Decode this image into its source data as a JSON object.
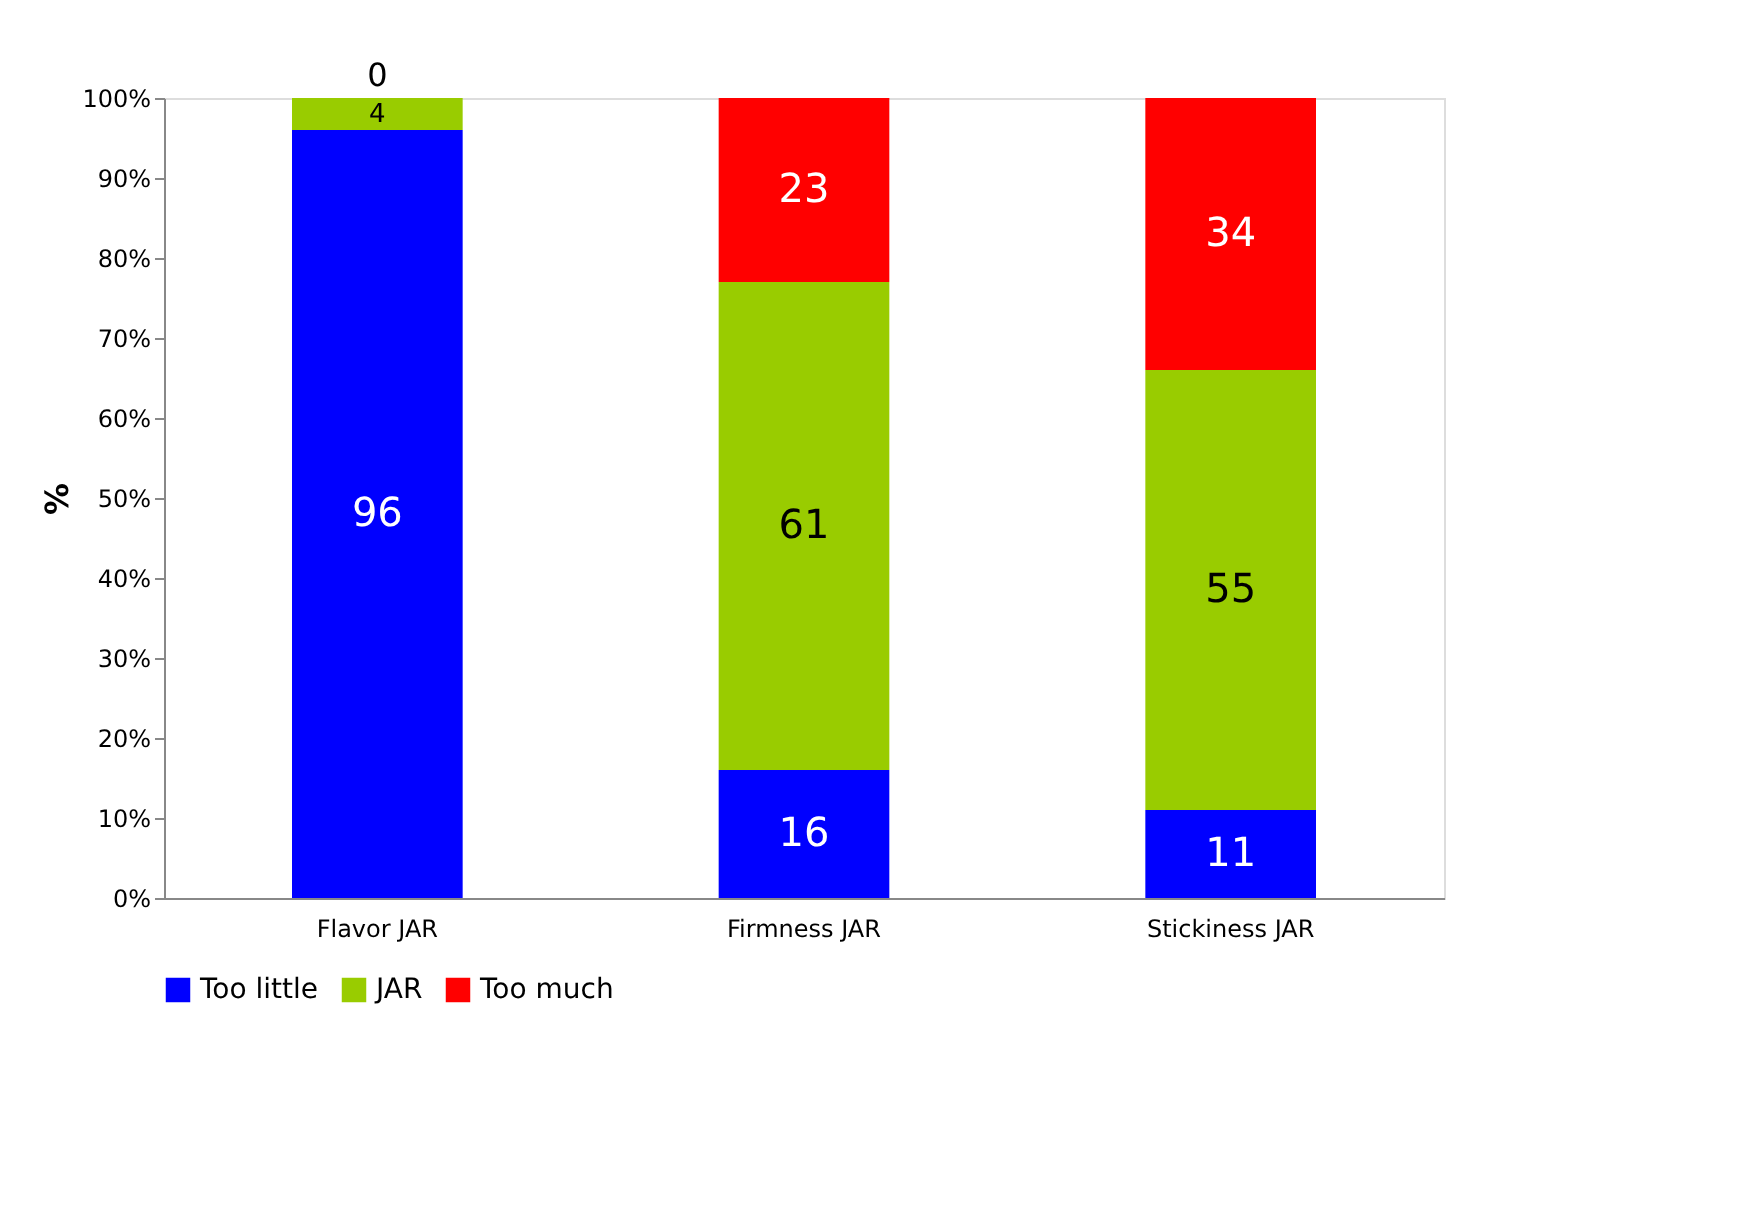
{
  "chart_data": {
    "type": "bar",
    "stacked": true,
    "ylabel": "%",
    "categories": [
      "Flavor JAR",
      "Firmness JAR",
      "Stickiness JAR"
    ],
    "series": [
      {
        "name": "Too little",
        "color": "#0000ff",
        "values": [
          96,
          16,
          11
        ]
      },
      {
        "name": "JAR",
        "color": "#99cc00",
        "values": [
          4,
          61,
          55
        ]
      },
      {
        "name": "Too much",
        "color": "#ff0000",
        "values": [
          0,
          23,
          34
        ]
      }
    ],
    "ylim": [
      0,
      100
    ],
    "yticks": [
      {
        "value": 0,
        "label": "0%"
      },
      {
        "value": 10,
        "label": "10%"
      },
      {
        "value": 20,
        "label": "20%"
      },
      {
        "value": 30,
        "label": "30%"
      },
      {
        "value": 40,
        "label": "40%"
      },
      {
        "value": 50,
        "label": "50%"
      },
      {
        "value": 60,
        "label": "60%"
      },
      {
        "value": 70,
        "label": "70%"
      },
      {
        "value": 80,
        "label": "80%"
      },
      {
        "value": 90,
        "label": "90%"
      },
      {
        "value": 100,
        "label": "100%"
      }
    ],
    "data_labels": true,
    "legend": "bottom",
    "grid": false
  }
}
